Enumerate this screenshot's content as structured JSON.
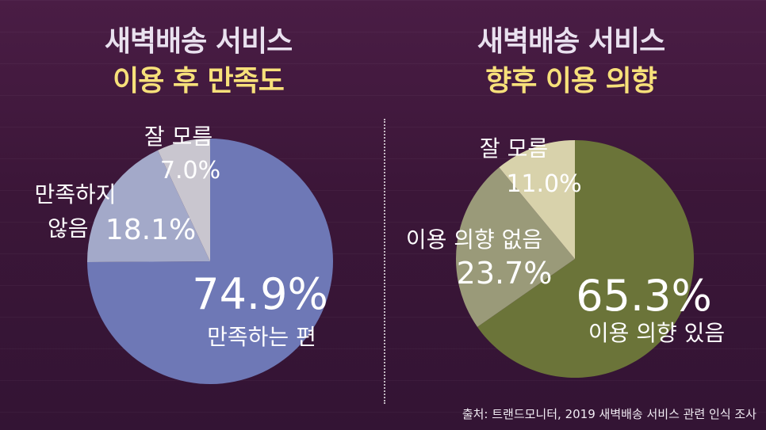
{
  "charts": {
    "left": {
      "title_line1": "새벽배송 서비스",
      "title_line2": "이용 후 만족도"
    },
    "right": {
      "title_line1": "새벽배송 서비스",
      "title_line2": "향후 이용 의향"
    }
  },
  "source": "출처: 트랜드모니터, 2019 새벽배송 서비스 관련 인식 조사",
  "chart_data": [
    {
      "type": "pie",
      "title": "새벽배송 서비스 이용 후 만족도",
      "slices": [
        {
          "label": "만족하는 편",
          "value": 74.9,
          "value_label": "74.9%",
          "color": "#6e78b6"
        },
        {
          "label": "만족하지 않음",
          "value": 18.1,
          "value_label": "18.1%",
          "color": "#a3a9c9"
        },
        {
          "label": "잘 모름",
          "value": 7.0,
          "value_label": "7.0%",
          "color": "#c9c6cf"
        }
      ]
    },
    {
      "type": "pie",
      "title": "새벽배송 서비스 향후 이용 의향",
      "slices": [
        {
          "label": "이용 의향 있음",
          "value": 65.3,
          "value_label": "65.3%",
          "color": "#6b7439"
        },
        {
          "label": "이용 의향 없음",
          "value": 23.7,
          "value_label": "23.7%",
          "color": "#9a9a79"
        },
        {
          "label": "잘 모름",
          "value": 11.0,
          "value_label": "11.0%",
          "color": "#d8d2ab"
        }
      ]
    }
  ]
}
